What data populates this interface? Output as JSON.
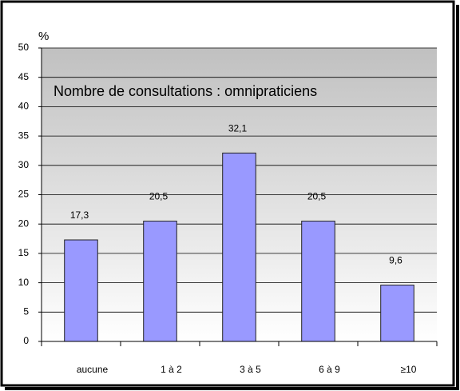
{
  "chart_data": {
    "type": "bar",
    "title": "Nombre de consultations : omnipraticiens",
    "y_label": "%",
    "categories": [
      "aucune",
      "1 à 2",
      "3 à 5",
      "6 à 9",
      "≥10"
    ],
    "values": [
      17.3,
      20.5,
      32.1,
      20.5,
      9.6
    ],
    "value_labels": [
      "17,3",
      "20,5",
      "32,1",
      "20,5",
      "9,6"
    ],
    "color": "#9999ff",
    "ylim": [
      0,
      50
    ],
    "yticks": [
      0,
      5,
      10,
      15,
      20,
      25,
      30,
      35,
      40,
      45,
      50
    ],
    "grid": true
  }
}
